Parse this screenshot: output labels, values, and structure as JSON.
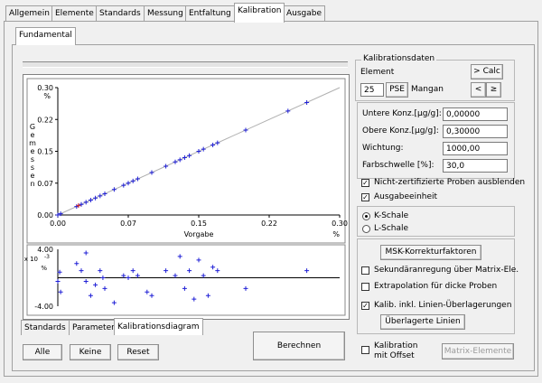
{
  "tabs": [
    "Allgemein",
    "Elemente",
    "Standards",
    "Messung",
    "Entfaltung",
    "Kalibration",
    "Ausgabe"
  ],
  "subtab": "Fundamental",
  "bottom_tabs": [
    "Standards",
    "Parameter",
    "Kalibrationsdiagram"
  ],
  "buttons": {
    "alle": "Alle",
    "keine": "Keine",
    "reset": "Reset",
    "berechnen": "Berechnen",
    "matrix": "Matrix-Elemente",
    "msk": "MSK-Korrekturfaktoren",
    "ueberlagerte": "Überlagerte Linien",
    "calc": "> Calc",
    "prev": "<",
    "next": "≥",
    "pse": "PSE"
  },
  "kalibrationsdaten": {
    "title": "Kalibrationsdaten",
    "element_label": "Element",
    "element_number": "25",
    "element_name": "Mangan",
    "untere_label": "Untere Konz.[µg/g]:",
    "untere_value": "0,00000",
    "obere_label": "Obere Konz.[µg/g]:",
    "obere_value": "0,30000",
    "wichtung_label": "Wichtung:",
    "wichtung_value": "1000,00",
    "farbschwelle_label": "Farbschwelle [%]:",
    "farbschwelle_value": "30,0",
    "nicht_zert": "Nicht-zertifizierte Proben ausblenden",
    "ausgabeeinheit": "Ausgabeeinheit",
    "k_schale": "K-Schale",
    "l_schale": "L-Schale",
    "sekundaer": "Sekundäranregung über Matrix-Ele.",
    "extrapolation": "Extrapolation für dicke Proben",
    "kalib_linien": "Kalib. inkl. Linien-Überlagerungen",
    "kalibration_offset_1": "Kalibration",
    "kalibration_offset_2": "mit Offset"
  },
  "colors": {
    "point": "#1f1fd6",
    "point_red": "#d02020",
    "fit_line": "#b0b0b0"
  },
  "chart_data": [
    {
      "type": "scatter",
      "ylabel": "Gemessen",
      "xlabel": "Vorgabe",
      "x_unit": "%",
      "y_unit": "%",
      "xlim": [
        0,
        0.3
      ],
      "ylim": [
        0,
        0.3
      ],
      "x_ticks": [
        "0.00",
        "0.07",
        "0.15",
        "0.22",
        "0.30"
      ],
      "y_ticks": [
        "0.00",
        "0.07",
        "0.15",
        "0.22",
        "0.30"
      ],
      "fit_line": [
        [
          0,
          0
        ],
        [
          0.3,
          0.3
        ]
      ],
      "series": [
        {
          "color": "blue",
          "points": [
            [
              0.0,
              0.0
            ],
            [
              0.003,
              0.003
            ],
            [
              0.02,
              0.02
            ],
            [
              0.025,
              0.025
            ],
            [
              0.03,
              0.03
            ],
            [
              0.035,
              0.035
            ],
            [
              0.04,
              0.04
            ],
            [
              0.045,
              0.045
            ],
            [
              0.05,
              0.05
            ],
            [
              0.06,
              0.06
            ],
            [
              0.07,
              0.07
            ],
            [
              0.075,
              0.075
            ],
            [
              0.08,
              0.08
            ],
            [
              0.085,
              0.085
            ],
            [
              0.1,
              0.1
            ],
            [
              0.115,
              0.115
            ],
            [
              0.125,
              0.125
            ],
            [
              0.13,
              0.13
            ],
            [
              0.135,
              0.135
            ],
            [
              0.14,
              0.14
            ],
            [
              0.15,
              0.15
            ],
            [
              0.155,
              0.155
            ],
            [
              0.165,
              0.165
            ],
            [
              0.17,
              0.17
            ],
            [
              0.2,
              0.2
            ],
            [
              0.245,
              0.245
            ],
            [
              0.265,
              0.265
            ]
          ]
        },
        {
          "color": "red",
          "points": [
            [
              0.022,
              0.022
            ]
          ]
        }
      ]
    },
    {
      "type": "scatter",
      "ylabel": "x 10^-3 %",
      "y_multiplier": "x 10",
      "y_exponent": "-3",
      "y_unit": "%",
      "xlim": [
        0,
        0.3
      ],
      "ylim": [
        -4.0,
        4.0
      ],
      "y_ticks": [
        "4.00",
        "-4.00"
      ],
      "points": [
        [
          0.0,
          -0.5
        ],
        [
          0.002,
          0.8
        ],
        [
          0.003,
          -2.0
        ],
        [
          0.02,
          2.0
        ],
        [
          0.025,
          1.0
        ],
        [
          0.03,
          3.5
        ],
        [
          0.03,
          -0.5
        ],
        [
          0.035,
          -2.5
        ],
        [
          0.04,
          -1.0
        ],
        [
          0.045,
          1.0
        ],
        [
          0.048,
          0.0
        ],
        [
          0.05,
          -1.5
        ],
        [
          0.06,
          -3.5
        ],
        [
          0.07,
          0.3
        ],
        [
          0.075,
          0.0
        ],
        [
          0.08,
          1.0
        ],
        [
          0.085,
          0.3
        ],
        [
          0.095,
          -2.0
        ],
        [
          0.1,
          -2.5
        ],
        [
          0.115,
          1.0
        ],
        [
          0.125,
          0.3
        ],
        [
          0.13,
          3.0
        ],
        [
          0.135,
          -1.5
        ],
        [
          0.14,
          1.0
        ],
        [
          0.145,
          -3.0
        ],
        [
          0.15,
          2.5
        ],
        [
          0.155,
          0.3
        ],
        [
          0.16,
          -2.5
        ],
        [
          0.165,
          1.5
        ],
        [
          0.17,
          1.0
        ],
        [
          0.2,
          -1.5
        ],
        [
          0.265,
          1.0
        ]
      ]
    }
  ]
}
